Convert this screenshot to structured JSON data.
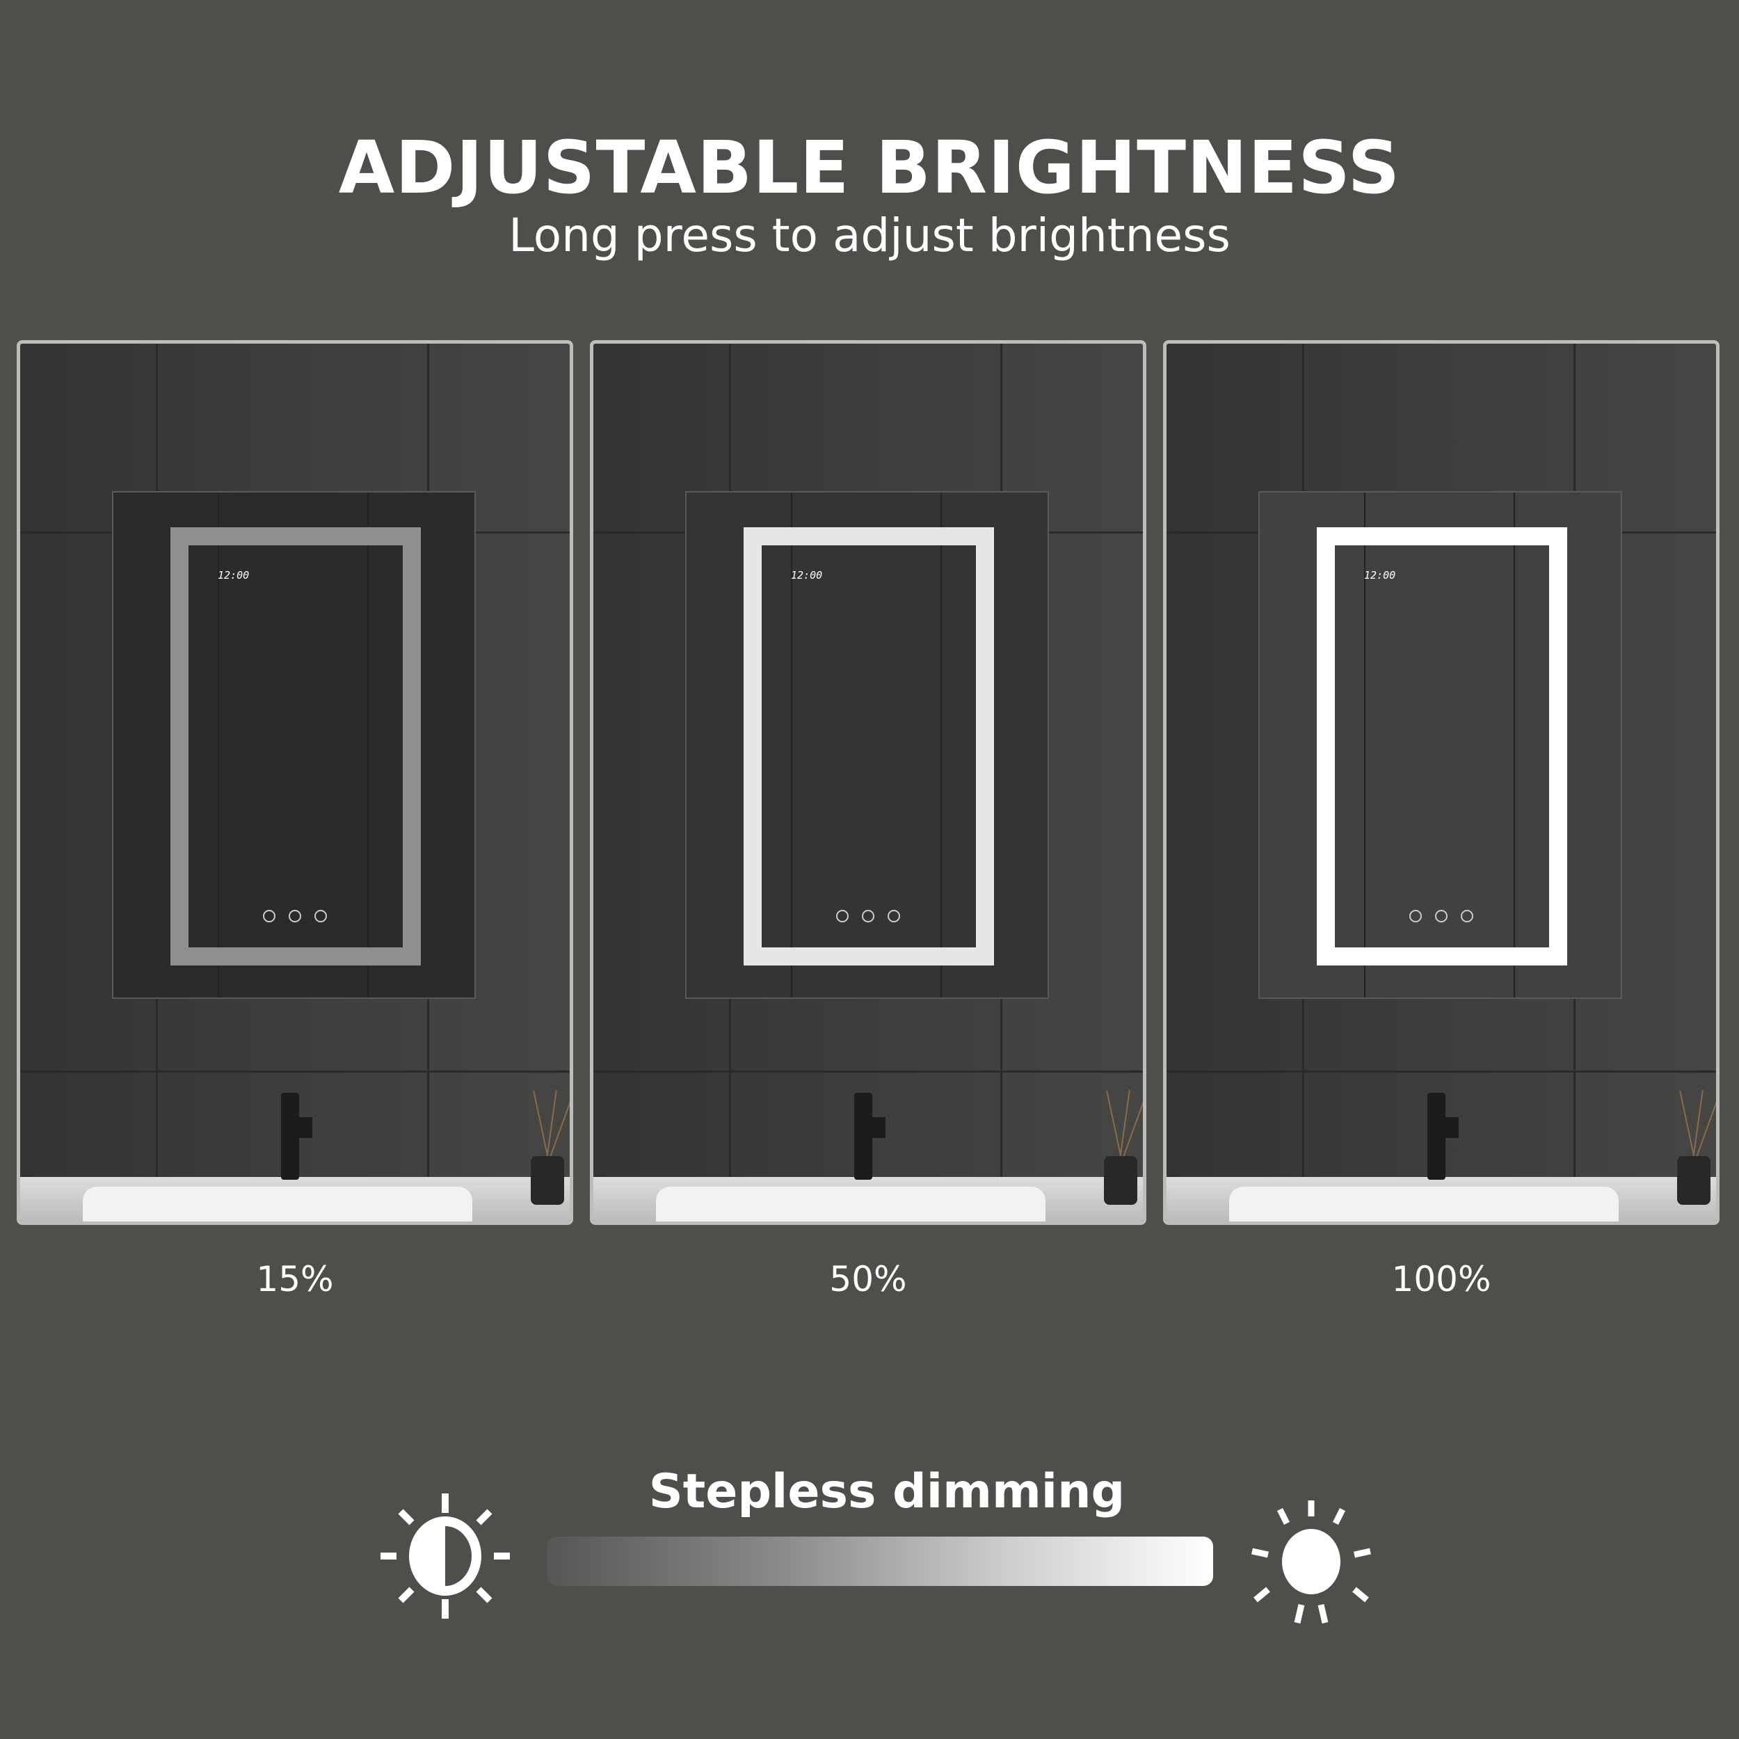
{
  "header": {
    "title": "ADJUSTABLE BRIGHTNESS",
    "subtitle": "Long press to adjust brightness"
  },
  "panels": [
    {
      "label": "15%",
      "brightness_percent": 15,
      "led_color": "#8f8f8f",
      "clock": "12:00"
    },
    {
      "label": "50%",
      "brightness_percent": 50,
      "led_color": "#e6e6e6",
      "clock": "12:00"
    },
    {
      "label": "100%",
      "brightness_percent": 100,
      "led_color": "#ffffff",
      "clock": "12:00"
    }
  ],
  "dimming": {
    "label": "Stepless dimming",
    "low_icon": "half-sun-icon",
    "high_icon": "sun-icon",
    "bar_colors": [
      "#565654",
      "#ffffff"
    ]
  },
  "colors": {
    "background": "#4f4e4a",
    "text": "#ffffff"
  }
}
